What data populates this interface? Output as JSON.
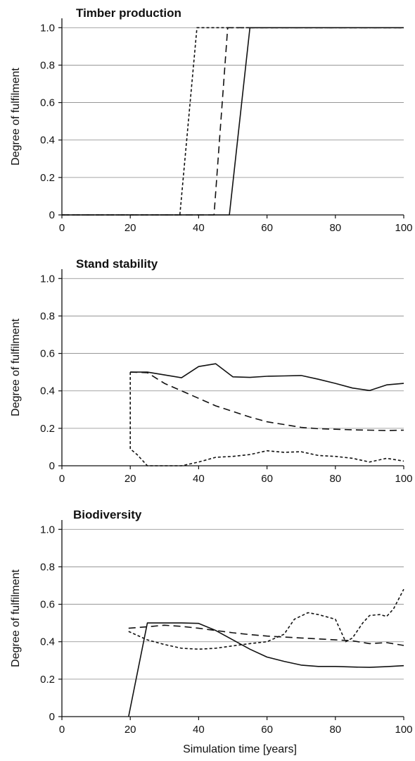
{
  "figure": {
    "xlabel": "Simulation time [years]"
  },
  "chart_data": [
    {
      "type": "line",
      "title": "Timber production",
      "ylabel": "Degree of fulfilment",
      "xlabel": "",
      "xlim": [
        0,
        100
      ],
      "ylim": [
        0,
        1.05
      ],
      "xticks": [
        0,
        20,
        40,
        60,
        80,
        100
      ],
      "yticks": [
        0,
        0.2,
        0.4,
        0.6,
        0.8,
        1.0
      ],
      "ytick_labels": [
        "0",
        "0.2",
        "0.4",
        "0.6",
        "0.8",
        "1.0"
      ],
      "grid": "horizontal",
      "series": [
        {
          "style": "solid",
          "points": [
            [
              0,
              0
            ],
            [
              49,
              0
            ],
            [
              55,
              1.0
            ],
            [
              100,
              1.0
            ]
          ]
        },
        {
          "style": "dashed",
          "points": [
            [
              0,
              0
            ],
            [
              44.5,
              0
            ],
            [
              48.5,
              1.0
            ],
            [
              100,
              1.0
            ]
          ]
        },
        {
          "style": "dotted",
          "points": [
            [
              0,
              0
            ],
            [
              34.5,
              0
            ],
            [
              39.5,
              1.0
            ],
            [
              100,
              1.0
            ]
          ]
        }
      ]
    },
    {
      "type": "line",
      "title": "Stand stability",
      "ylabel": "Degree of fulfilment",
      "xlabel": "",
      "xlim": [
        0,
        100
      ],
      "ylim": [
        0,
        1.05
      ],
      "xticks": [
        0,
        20,
        40,
        60,
        80,
        100
      ],
      "yticks": [
        0,
        0.2,
        0.4,
        0.6,
        0.8,
        1.0
      ],
      "ytick_labels": [
        "0",
        "0.2",
        "0.4",
        "0.6",
        "0.8",
        "1.0"
      ],
      "grid": "horizontal",
      "series": [
        {
          "style": "solid",
          "points": [
            [
              20,
              0.5
            ],
            [
              25,
              0.5
            ],
            [
              30,
              0.485
            ],
            [
              35,
              0.47
            ],
            [
              40,
              0.53
            ],
            [
              45,
              0.545
            ],
            [
              50,
              0.475
            ],
            [
              55,
              0.472
            ],
            [
              60,
              0.478
            ],
            [
              65,
              0.48
            ],
            [
              70,
              0.482
            ],
            [
              75,
              0.462
            ],
            [
              80,
              0.44
            ],
            [
              85,
              0.415
            ],
            [
              90,
              0.402
            ],
            [
              95,
              0.432
            ],
            [
              100,
              0.44
            ]
          ]
        },
        {
          "style": "dashed",
          "points": [
            [
              20,
              0.5
            ],
            [
              25,
              0.497
            ],
            [
              30,
              0.44
            ],
            [
              35,
              0.4
            ],
            [
              40,
              0.36
            ],
            [
              45,
              0.32
            ],
            [
              50,
              0.29
            ],
            [
              55,
              0.26
            ],
            [
              60,
              0.235
            ],
            [
              65,
              0.22
            ],
            [
              70,
              0.205
            ],
            [
              75,
              0.198
            ],
            [
              80,
              0.195
            ],
            [
              85,
              0.192
            ],
            [
              90,
              0.19
            ],
            [
              95,
              0.188
            ],
            [
              100,
              0.19
            ]
          ]
        },
        {
          "style": "dotted",
          "points": [
            [
              20,
              0.5
            ],
            [
              20,
              0.09
            ],
            [
              22,
              0.06
            ],
            [
              25,
              0.0
            ],
            [
              35,
              0.0
            ],
            [
              40,
              0.02
            ],
            [
              45,
              0.045
            ],
            [
              50,
              0.05
            ],
            [
              55,
              0.06
            ],
            [
              60,
              0.08
            ],
            [
              65,
              0.072
            ],
            [
              70,
              0.075
            ],
            [
              75,
              0.055
            ],
            [
              80,
              0.05
            ],
            [
              85,
              0.04
            ],
            [
              90,
              0.02
            ],
            [
              95,
              0.04
            ],
            [
              100,
              0.025
            ]
          ]
        }
      ]
    },
    {
      "type": "line",
      "title": "Biodiversity",
      "ylabel": "Degree of fulfilment",
      "xlabel": "Simulation time [years]",
      "xlim": [
        0,
        100
      ],
      "ylim": [
        0,
        1.05
      ],
      "xticks": [
        0,
        20,
        40,
        60,
        80,
        100
      ],
      "yticks": [
        0,
        0.2,
        0.4,
        0.6,
        0.8,
        1.0
      ],
      "ytick_labels": [
        "0",
        "0.2",
        "0.4",
        "0.6",
        "0.8",
        "1.0"
      ],
      "grid": "horizontal",
      "series": [
        {
          "style": "solid",
          "points": [
            [
              19.5,
              0.0
            ],
            [
              25,
              0.5
            ],
            [
              30,
              0.5
            ],
            [
              35,
              0.5
            ],
            [
              40,
              0.498
            ],
            [
              45,
              0.46
            ],
            [
              50,
              0.41
            ],
            [
              55,
              0.36
            ],
            [
              60,
              0.318
            ],
            [
              65,
              0.295
            ],
            [
              70,
              0.275
            ],
            [
              75,
              0.268
            ],
            [
              80,
              0.268
            ],
            [
              85,
              0.265
            ],
            [
              90,
              0.263
            ],
            [
              95,
              0.267
            ],
            [
              100,
              0.272
            ]
          ]
        },
        {
          "style": "dashed",
          "points": [
            [
              19.5,
              0.472
            ],
            [
              25,
              0.48
            ],
            [
              30,
              0.488
            ],
            [
              35,
              0.482
            ],
            [
              40,
              0.472
            ],
            [
              45,
              0.46
            ],
            [
              50,
              0.448
            ],
            [
              55,
              0.438
            ],
            [
              60,
              0.43
            ],
            [
              65,
              0.425
            ],
            [
              70,
              0.42
            ],
            [
              75,
              0.415
            ],
            [
              80,
              0.41
            ],
            [
              85,
              0.405
            ],
            [
              90,
              0.39
            ],
            [
              95,
              0.395
            ],
            [
              100,
              0.38
            ]
          ]
        },
        {
          "style": "dotted",
          "points": [
            [
              19.5,
              0.455
            ],
            [
              25,
              0.41
            ],
            [
              30,
              0.385
            ],
            [
              35,
              0.365
            ],
            [
              40,
              0.36
            ],
            [
              45,
              0.365
            ],
            [
              50,
              0.378
            ],
            [
              55,
              0.39
            ],
            [
              60,
              0.4
            ],
            [
              65,
              0.44
            ],
            [
              68,
              0.52
            ],
            [
              72,
              0.555
            ],
            [
              75,
              0.545
            ],
            [
              80,
              0.52
            ],
            [
              83,
              0.4
            ],
            [
              85,
              0.42
            ],
            [
              88,
              0.5
            ],
            [
              90,
              0.54
            ],
            [
              93,
              0.545
            ],
            [
              95,
              0.535
            ],
            [
              97,
              0.575
            ],
            [
              100,
              0.68
            ]
          ]
        }
      ]
    }
  ]
}
